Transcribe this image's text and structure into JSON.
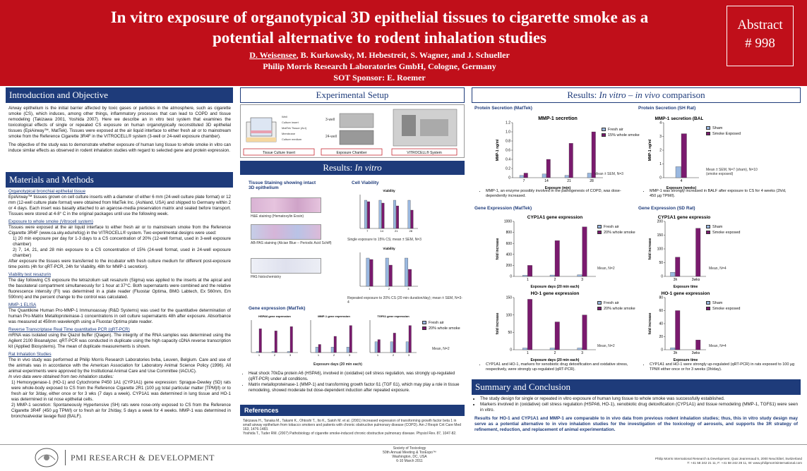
{
  "header": {
    "title": "In vitro exposure of organotypical 3D epithelial tissues to cigarette smoke as a potential alternative to rodent inhalation studies",
    "authors_first": "D. Weisensee",
    "authors_rest": ", B. Kurkowsky, M. Hebestreit, S. Wagner, and J. Schueller",
    "affiliation": "Philip Morris Research Laboratories GmbH, Cologne, Germany",
    "sponsor": "SOT Sponsor: E. Roemer",
    "abstract_label": "Abstract",
    "abstract_number": "# 998"
  },
  "intro": {
    "heading": "Introduction and Objective",
    "p1": "Airway epithelium is the initial barrier affected by toxic gases or particles in the atmosphere, such as cigarette smoke (CS), which induces, among other things, inflammatory processes that can lead to COPD and tissue remodeling (Takizawa 2001, Yoshida 2007). Here we describe an in vitro test system that examines the toxicological effects of single or repeated CS exposure on human organotypically reconstituted 3D epithelial tissues (EpiAirway™, MatTek). Tissues were exposed at the air liquid interface to either fresh air or to mainstream smoke from the Reference Cigarette 3R4F in the VITROCELL® system (3-well or 24-well exposure chamber).",
    "p2": "The objective of the study was to demonstrate whether exposure of human lung tissue to whole smoke in vitro can induce similar effects as observed in rodent inhalation studies with regard to selected gene and protein expression."
  },
  "methods": {
    "heading": "Materials and Methods",
    "s1_title": "Organotypical bronchial epithelial tissue",
    "s1": "EpiAirway™ tissues grown on cell culture inserts with a diameter of either 6 mm (24-well culture plate format) or 12 mm (12-well culture plate format) were obtained from MatTek Inc. (Ashland, USA) and shipped to Germany within 2 or 4 days. Each insert was basally attached to an agarose-media preservation matrix and sealed before transport. Tissues were stored at 4-8° C in the original packages until use the following week.",
    "s2_title": "Exposure to whole smoke (Vitrocell system)",
    "s2": "Tissues were exposed at the air liquid interface to either fresh air or to mainstream smoke from the Reference Cigarette 3R4F (www.ca.uky.edu/refcig) in the VITROCELL® system. Two experimental designs were used:",
    "s2_i1": "1)  20 min exposure per day for 1-3 days to a CS concentration of 20% (12-well format, used in 3-well exposure chamber)",
    "s2_i2": "2)  7, 14, 21, and 28 min exposure to a CS concentration of 15% (24-well format, used in 24-well exposure chamber)",
    "s2_after": "After exposure the tissues were transferred to the incubator with fresh culture medium for different post-exposure time points (4h for qRT-PCR, 24h for Viability, 48h for MMP-1 secretion).",
    "s3_title": "Viability test resazurin",
    "s3": "The day following CS exposure the tetrazolium salt resazurin (Sigma) was applied to the inserts at the apical and the basolateral compartment simultaneously for 1 hour at 37°C. Both supernatants were combined and the relative fluorescence intensity (FI) was determined in a plate reader (Fluostar Optima, BMG Labtech, Ex 560nm, Em 590nm) and the percent change to the control was calculated.",
    "s4_title": "MMP-1 ELISA",
    "s4": "The Quantikine Human Pro-MMP-1 Immunoassay (R&D Systems) was used for the quantitative determination of human Pro-Matrix Metalloproteinase-1 concentrations in cell culture supernatants 48h after exposure. Absorbance was measured at 450nm wavelength using a Fluostar Optima plate reader.",
    "s5_title": "Reverse Transcriptase Real Time quantitative PCR (qRT-PCR)",
    "s5": "mRNA was isolated using the Qiazol buffer (Qiagen). The integrity of the RNA samples was determined using the Agilent 2100 Bioanalyzer. qRT-PCR was conducted in duplicate using the high capacity cDNA reverse transcription kit (Applied Biosystems). The mean of duplicate measurements is shown.",
    "s6_title": "Rat Inhalation Studies",
    "s6": "The in vivo study was performed at Philip Morris Research Laboratories bvba, Leuven, Belgium. Care and use of the animals was in accordance with the American Association for Laboratory Animal Science Policy (1996). All animal experiments were approved by the Institutional Animal Care and Use Committee (IACUC).",
    "s6_b": "In vivo data were obtained from two inhalation studies:",
    "s6_i1": "1) Hemoxygenase-1 (HO-1) and Cytochrome P450 1A1 (CYP1A1) gene expression: Sprague-Dewley (SD) rats were whole-body exposed to CS from the Reference Cigarette 2R1 (100 µg total particular matter [TPM]/l) or to fresh air for 3/day, either once or for 3 wks (7 days a week). CYP1A1 was determined in lung tissue and HO-1 was determined in rat nose epithelial cells.",
    "s6_i2": "2) MMP-1 secretion: Spontaneously Hypertensive (SH) rats were nose-only exposed to CS from the Reference Cigarette 3R4F (450 µg TPM/l) or to fresh air for 2h/day, 5 days a week for 4 weeks. MMP-1 was determined in bronchoalveolar lavage fluid (BALF)."
  },
  "setup": {
    "heading": "Experimental Setup",
    "cap1": "Tissue Culture Insert",
    "cap2": "Exposure Chamber",
    "cap3": "VITROCELL® System",
    "lbl_well": "Well",
    "lbl_insert": "Culture insert",
    "lbl_tissue": "MatTek Tissue (ALI)",
    "lbl_membrane": "Membrane",
    "lbl_medium": "Culture medium",
    "lbl_3well": "3-well",
    "lbl_24well": "24-well"
  },
  "results_vitro": {
    "heading_prefix": "Results: ",
    "heading_italic": "In vitro",
    "staining_title": "Tissue Staining showing intact 3D epithelium",
    "stain1": "H&E staining (Hematoxylin Eosin)",
    "stain2": "AB-PAS staining (Alcian Blue – Periodic Acid Schiff)",
    "stain3": "PAS histochemistry",
    "viability_title": "Cell Viability",
    "via1_title": "Viability",
    "via1_note": "Single exposure to 15% CS; mean ± SEM, N=3",
    "via2_title": "Viability",
    "via2_note": "Repeated exposure to 20% CS (20 min duration/day); mean ± SEM, N=3-4",
    "gene_title": "Gene expression (MatTek)",
    "g1": "HSPA6 gene expression",
    "g2": "MMP-1 gene expression",
    "g3": "TGFß1 gene expression",
    "gene_note": "Mean, N=2",
    "gene_xlabel": "Exposure days (20 min each)",
    "legend_air": "Fresh air",
    "legend_smoke": "20% whole smoke",
    "bullet1": "Heat shock 70kDa protein A6 (HSPA6), involved in (oxidative) cell stress regulation, was strongly up-regulated (qRT-PCR) under all conditions.",
    "bullet2": "Matrix metalloproteinase-1 (MMP-1) and transforming growth factor ß1 (TGF ß1), which may play a role in tissue remodeling, showed moderate but dose-dependent induction after repeated exposure."
  },
  "references": {
    "heading": "References",
    "r1": "Takizawa H., Tanaka M., Takami K., Ohtoshi T., Ito K., Satoh M. et al. (2001) Increased expression of transforming growth factor beta 1 in small airway epithelium from tobacco smokers and patients with chronic obstructive pulmonary disease (COPD). Am J Respir Crit Care Med 163, 1476-1483.",
    "r2": "Yoshida T., Tuder RM. (2007) Pathobiology of cigarette smoke-induced chronic obstructive pulmonary disease. Physiol Rev. 87, 1047-82."
  },
  "comparison": {
    "heading_prefix": "Results:  ",
    "heading_italic": "In vitro – in vivo",
    "heading_suffix": " comparison",
    "protein_mattek": "Protein Secretion (MatTek)",
    "protein_rat": "Protein Secretion (SH Rat)",
    "gene_mattek": "Gene Expression (MatTek)",
    "gene_rat": "Gene Expression (SD Rat)",
    "mmp_mattek_note": "Mean ± SEM, N=3",
    "mmp_rat_note": "Mean ± SEM, N=7 (sham), N=10 (smoke exposed)",
    "cyp_note": "Mean, N=2",
    "rat_gene_note": "Mean, N=4",
    "bullet_mmp_mattek": "MMP-1, an enzyme possibly involved in the pathogenesis of COPD, was dose-dependently increased.",
    "bullet_mmp_rat": "MMP-1 was strongly increased in BALF after exposure to CS for 4 weeks (2h/d, 450 µg TPM/l).",
    "bullet_gene_mattek": "CYP1A1 and HO-1, markers for xenobiotic drug detoxification and oxidative stress, respectively, were strongly up-regulated (qRT-PCR).",
    "bullet_gene_rat": "CYP1A1 and HO-1 were strongly up-regulated (qRT-PCR) in rats exposed to 100 µg TPM/l either once or for 3 weeks (3h/day)."
  },
  "summary": {
    "heading": "Summary and Conclusion",
    "b1": "The study design for single or repeated in vitro exposure of human lung tissue to whole smoke was successfully established.",
    "b2": "Markers involved in (oxidative) cell stress regulation (HSPA6, HO-1), xenobiotic drug detoxification (CYP1A1) and tissue remodeling (MMP-1, TGFß1) were seen in vitro.",
    "conclusion": "Results for HO-1 and CYP1A1 and MMP-1 are comparable to in vivo data from previous rodent inhalation studies; thus, this in vitro study design may serve as a potential alternative to in vivo inhalation studies for the investigation of the toxicology of aerosols, and supports the 3R strategy of refinement, reduction, and replacement of animal experimentation."
  },
  "footer": {
    "brand": "PMI RESEARCH & DEVELOPMENT",
    "meeting1": "Society of Toxicology",
    "meeting2": "50th Annual Meeting & ToxExpo™",
    "meeting3": "Washington, DC, USA",
    "meeting4": "6-10 March 2011",
    "contact1": "Philip Morris International Research & Development, Quai Jeanrenaud 5, 2000 Neuchâtel, Switzerland",
    "contact2": "T: +41 58 242 21 11, F: +41 58 242 28 11, W: www.philipmorrisinternational.com"
  },
  "colors": {
    "header_red": "#c00f1a",
    "section_blue": "#1e3b7a",
    "bar_air": "#9ab8e0",
    "bar_smoke": "#7a1a6e"
  },
  "chart_data": [
    {
      "id": "mmp1_mattek",
      "type": "bar",
      "title": "MMP-1 secretion",
      "xlabel": "Exposure (min)",
      "ylabel": "MMP-1 ng/ml",
      "categories": [
        "7",
        "14",
        "21",
        "28"
      ],
      "ylim": [
        0,
        1.2
      ],
      "yticks": [
        "0",
        "0.2",
        "0.4",
        "0.6",
        "0.8",
        "1.0",
        "1.2"
      ],
      "series": [
        {
          "name": "Fresh air",
          "values": [
            0.05,
            0.08,
            0.05,
            0.1
          ]
        },
        {
          "name": "15% whole smoke",
          "values": [
            0.1,
            0.4,
            0.75,
            1.0
          ]
        }
      ]
    },
    {
      "id": "mmp1_rat",
      "type": "bar",
      "title": "MMP-1 secretion (BALF)",
      "xlabel": "Exposure (weeks)",
      "ylabel": "MMP-1 ng/ml",
      "categories": [
        "4"
      ],
      "ylim": [
        0,
        4
      ],
      "yticks": [
        "0",
        "1",
        "2",
        "3",
        "4"
      ],
      "series": [
        {
          "name": "Sham",
          "values": [
            0.8
          ]
        },
        {
          "name": "Smoke  Exposed",
          "values": [
            3.2
          ]
        }
      ]
    },
    {
      "id": "cyp1a1_mattek",
      "type": "bar",
      "title": "CYP1A1 gene expression",
      "xlabel": "Exposure days (20 min each)",
      "ylabel": "fold increase",
      "categories": [
        "1",
        "2",
        "3"
      ],
      "ylim": [
        0,
        1000
      ],
      "yticks": [
        "0",
        "200",
        "400",
        "600",
        "800",
        "1000"
      ],
      "series": [
        {
          "name": "Fresh air",
          "values": [
            20,
            25,
            30
          ]
        },
        {
          "name": "20% whole smoke",
          "values": [
            200,
            650,
            900
          ]
        }
      ]
    },
    {
      "id": "cyp1a1_rat",
      "type": "bar",
      "title": "CYP1A1 gene expression",
      "xlabel": "Exposure time",
      "ylabel": "fold increase",
      "categories": [
        "3h",
        "3wks"
      ],
      "ylim": [
        0,
        200
      ],
      "yticks": [
        "0",
        "50",
        "100",
        "150",
        "200"
      ],
      "series": [
        {
          "name": "Sham",
          "values": [
            15,
            0
          ]
        },
        {
          "name": "Smoke exposed",
          "values": [
            70,
            175
          ]
        }
      ]
    },
    {
      "id": "ho1_mattek",
      "type": "bar",
      "title": "HO-1 gene expression",
      "xlabel": "Exposure days (20 min each)",
      "ylabel": "fold increase",
      "categories": [
        "1",
        "2",
        "3"
      ],
      "ylim": [
        0,
        150
      ],
      "yticks": [
        "0",
        "50",
        "100",
        "150"
      ],
      "series": [
        {
          "name": "Fresh air",
          "values": [
            5,
            5,
            5
          ]
        },
        {
          "name": "20% whole smoke",
          "values": [
            145,
            80,
            100
          ]
        }
      ]
    },
    {
      "id": "ho1_rat",
      "type": "bar",
      "title": "HO-1 gene expression",
      "xlabel": "Exposure time",
      "ylabel": "fold increase",
      "categories": [
        "3h",
        "3wks"
      ],
      "ylim": [
        0,
        80
      ],
      "yticks": [
        "0",
        "20",
        "40",
        "60",
        "80"
      ],
      "series": [
        {
          "name": "Sham",
          "values": [
            3,
            0
          ]
        },
        {
          "name": "Smoke exposed",
          "values": [
            60,
            15
          ]
        }
      ]
    },
    {
      "id": "via1",
      "type": "bar",
      "title": "Viability",
      "xlabel": "Single Exposure (min)",
      "ylabel": "% change",
      "categories": [
        "7",
        "14",
        "21",
        "28"
      ],
      "ylim": [
        0,
        120
      ],
      "series": [
        {
          "name": "Fresh air",
          "values": [
            100,
            100,
            100,
            100
          ]
        },
        {
          "name": "15% whole smoke",
          "values": [
            95,
            90,
            80,
            65
          ]
        }
      ]
    },
    {
      "id": "via2",
      "type": "bar",
      "title": "Viability",
      "xlabel": "Exposure days (20 min each)",
      "ylabel": "% change",
      "categories": [
        "1",
        "2",
        "3"
      ],
      "ylim": [
        0,
        120
      ],
      "series": [
        {
          "name": "Fresh air",
          "values": [
            100,
            100,
            100
          ]
        },
        {
          "name": "20% whole smoke",
          "values": [
            95,
            75,
            60
          ]
        }
      ]
    },
    {
      "id": "hspa6",
      "type": "bar",
      "title": "HSPA6 gene expression",
      "xlabel": "",
      "ylabel": "fold increase",
      "categories": [
        "1",
        "2",
        "3"
      ],
      "ylim": [
        0,
        30
      ],
      "series": [
        {
          "name": "Fresh air",
          "values": [
            1,
            1,
            1
          ]
        },
        {
          "name": "20% whole smoke",
          "values": [
            22,
            20,
            24
          ]
        }
      ]
    },
    {
      "id": "mmp1_gene",
      "type": "bar",
      "title": "MMP-1 gene expression",
      "xlabel": "",
      "ylabel": "fold increase",
      "categories": [
        "1",
        "2",
        "3"
      ],
      "ylim": [
        0,
        6
      ],
      "series": [
        {
          "name": "Fresh air",
          "values": [
            1,
            1,
            1
          ]
        },
        {
          "name": "20% whole smoke",
          "values": [
            1.5,
            3,
            5
          ]
        }
      ]
    },
    {
      "id": "tgfb1",
      "type": "bar",
      "title": "TGFß1 gene expression",
      "xlabel": "",
      "ylabel": "fold increase",
      "categories": [
        "1",
        "2",
        "3"
      ],
      "ylim": [
        0,
        3
      ],
      "series": [
        {
          "name": "Fresh air",
          "values": [
            1,
            1,
            1
          ]
        },
        {
          "name": "20% whole smoke",
          "values": [
            1.2,
            1.8,
            2.5
          ]
        }
      ]
    }
  ]
}
